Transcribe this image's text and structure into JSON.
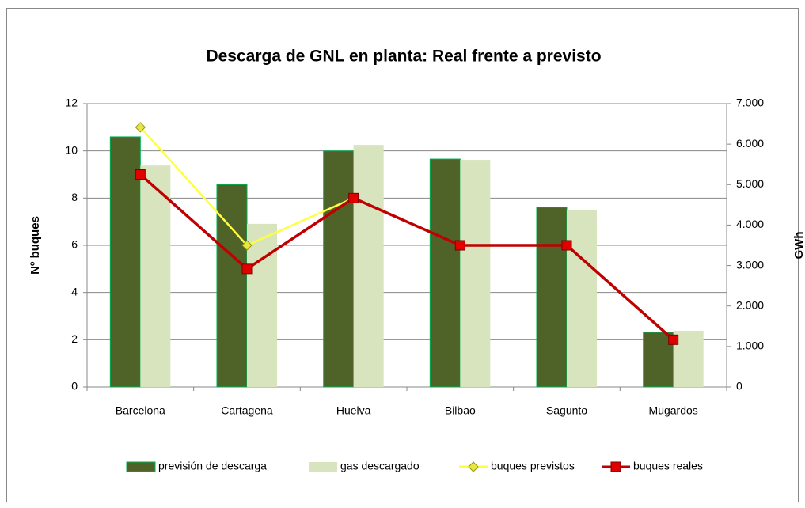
{
  "chart_data": {
    "type": "bar-line",
    "title": "Descarga de GNL en planta:  Real frente a previsto",
    "ylabel": "Nº buques",
    "y2label": "GWh",
    "categories": [
      "Barcelona",
      "Cartagena",
      "Huelva",
      "Bilbao",
      "Sagunto",
      "Mugardos"
    ],
    "ylim": [
      0,
      12
    ],
    "yticks": [
      0,
      2,
      4,
      6,
      8,
      10,
      12
    ],
    "y2lim": [
      0,
      7000
    ],
    "y2ticks": [
      0,
      {
        "value": 1000,
        "label": "1.000"
      },
      {
        "value": 2000,
        "label": "2.000"
      },
      {
        "value": 3000,
        "label": "3.000"
      },
      {
        "value": 4000,
        "label": "4.000"
      },
      {
        "value": 5000,
        "label": "5.000"
      },
      {
        "value": 6000,
        "label": "6.000"
      },
      {
        "value": 7000,
        "label": "7.000"
      }
    ],
    "grid": true,
    "legend": "bottom",
    "series": [
      {
        "name": "previsión de descarga",
        "kind": "bar",
        "axis": "y2",
        "color": "#4f6228",
        "edge": "#00b050",
        "values": [
          6180,
          5000,
          5830,
          5630,
          4440,
          1350
        ]
      },
      {
        "name": "gas descargado",
        "kind": "bar",
        "axis": "y2",
        "color": "#d7e4bd",
        "values": [
          5470,
          4030,
          5980,
          5610,
          4360,
          1390
        ]
      },
      {
        "name": "buques previstos",
        "kind": "line",
        "axis": "y",
        "color": "#ffff40",
        "marker": "diamond",
        "marker_color": "#e6e64c",
        "values": [
          11,
          6,
          8,
          6,
          6,
          2
        ]
      },
      {
        "name": "buques reales",
        "kind": "line",
        "axis": "y",
        "color": "#c00000",
        "marker": "square",
        "marker_color": "#e00000",
        "values": [
          9,
          5,
          8,
          6,
          6,
          2
        ]
      }
    ]
  }
}
